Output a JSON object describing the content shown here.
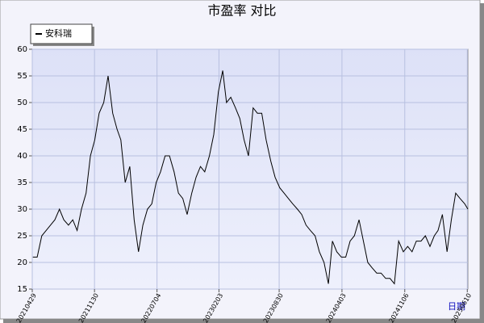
{
  "chart_data": {
    "type": "line",
    "title": "市盈率  对比",
    "x_label": "日期",
    "xlim": [
      "20210429",
      "20250612"
    ],
    "xticks": [
      "20210429",
      "20211130",
      "20220704",
      "20230203",
      "20230830",
      "20240403",
      "20241106",
      "20250610"
    ],
    "ylim": [
      15,
      60
    ],
    "yticks": [
      15,
      20,
      25,
      30,
      35,
      40,
      45,
      50,
      55,
      60
    ],
    "grid": true,
    "legend": "top-left",
    "x": [
      "20210501",
      "20210516",
      "20210601",
      "20210616",
      "20210701",
      "20210716",
      "20210801",
      "20210816",
      "20210901",
      "20210916",
      "20211001",
      "20211016",
      "20211101",
      "20211116",
      "20211201",
      "20211216",
      "20220101",
      "20220116",
      "20220201",
      "20220216",
      "20220301",
      "20220316",
      "20220401",
      "20220416",
      "20220501",
      "20220516",
      "20220601",
      "20220616",
      "20220701",
      "20220716",
      "20220801",
      "20220816",
      "20220901",
      "20220916",
      "20221001",
      "20221016",
      "20221101",
      "20221116",
      "20221201",
      "20221216",
      "20230101",
      "20230116",
      "20230201",
      "20230216",
      "20230301",
      "20230316",
      "20230401",
      "20230416",
      "20230501",
      "20230516",
      "20230601",
      "20230616",
      "20230701",
      "20230716",
      "20230801",
      "20230816",
      "20230901",
      "20230916",
      "20231001",
      "20231016",
      "20231101",
      "20231116",
      "20231201",
      "20231216",
      "20240101",
      "20240116",
      "20240201",
      "20240216",
      "20240301",
      "20240316",
      "20240401",
      "20240416",
      "20240501",
      "20240516",
      "20240601",
      "20240616",
      "20240701",
      "20240716",
      "20240801",
      "20240816",
      "20240901",
      "20240916",
      "20241001",
      "20241016",
      "20241101",
      "20241116",
      "20241201",
      "20241216",
      "20250101",
      "20250116",
      "20250201",
      "20250216",
      "20250301",
      "20250316",
      "20250401",
      "20250416",
      "20250501",
      "20250516",
      "20250601",
      "20250612"
    ],
    "series": [
      {
        "name": "安科瑞",
        "color": "#000000",
        "values": [
          21,
          21,
          25,
          26,
          27,
          28,
          30,
          28,
          27,
          28,
          26,
          30,
          33,
          40,
          43,
          48,
          50,
          55,
          48,
          45,
          43,
          35,
          38,
          28,
          22,
          27,
          30,
          31,
          35,
          37,
          40,
          40,
          37,
          33,
          32,
          29,
          33,
          36,
          38,
          37,
          40,
          44,
          52,
          56,
          50,
          51,
          49,
          47,
          43,
          40,
          49,
          48,
          48,
          43,
          39,
          36,
          34,
          33,
          32,
          31,
          30,
          29,
          27,
          26,
          25,
          22,
          20,
          16,
          24,
          22,
          21,
          21,
          24,
          25,
          28,
          24,
          20,
          19,
          18,
          18,
          17,
          17,
          16,
          24,
          22,
          23,
          22,
          24,
          24,
          25,
          23,
          25,
          26,
          29,
          22,
          28,
          33,
          32,
          31,
          30
        ]
      }
    ]
  }
}
